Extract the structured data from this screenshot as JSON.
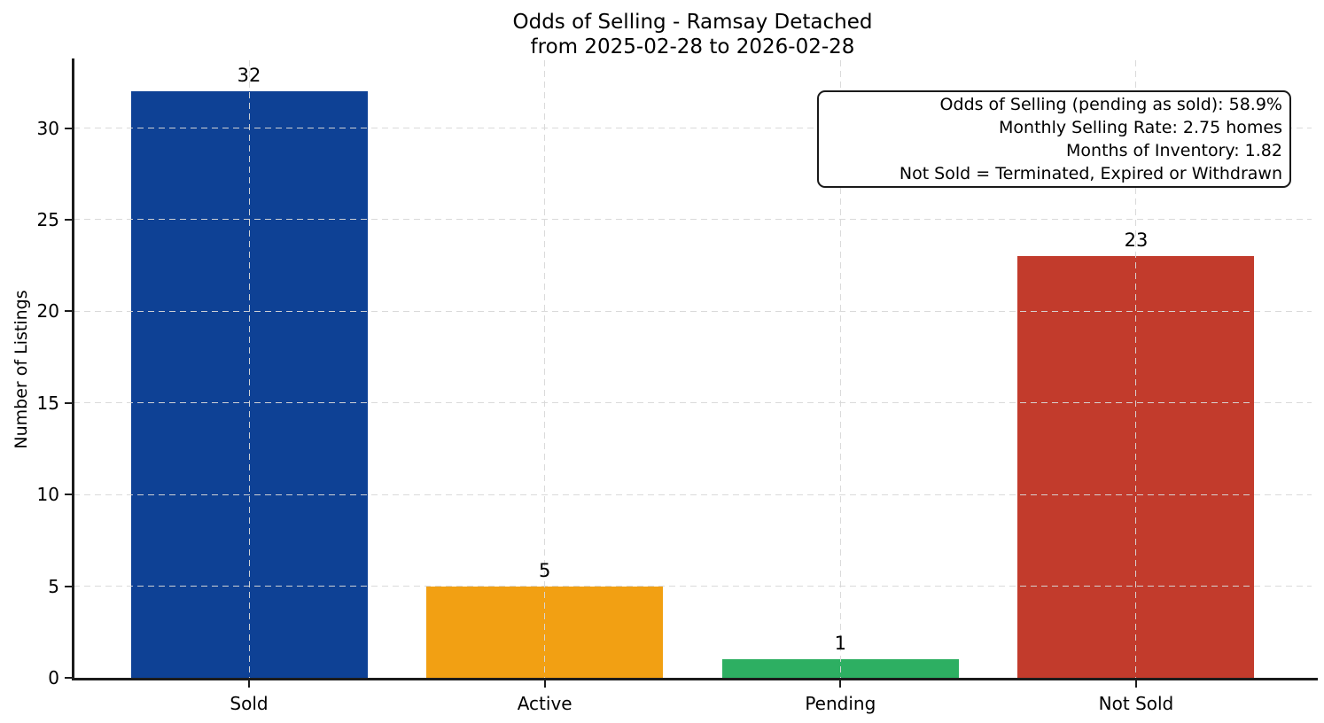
{
  "chart_data": {
    "type": "bar",
    "title": "Odds of Selling - Ramsay Detached",
    "subtitle": "from 2025-02-28 to 2026-02-28",
    "categories": [
      "Sold",
      "Active",
      "Pending",
      "Not Sold"
    ],
    "values": [
      32,
      5,
      1,
      23
    ],
    "bar_colors": [
      "#0e4195",
      "#f2a013",
      "#2daf62",
      "#c23b2c"
    ],
    "value_labels": [
      "32",
      "5",
      "1",
      "23"
    ],
    "xlabel": "",
    "ylabel": "Number of Listings",
    "ylim": [
      0,
      33.7
    ],
    "yticks": [
      0,
      5,
      10,
      15,
      20,
      25,
      30
    ],
    "grid": {
      "visible": true,
      "style": "dashed",
      "axes": "both",
      "color": "#d8d8d8"
    },
    "legend": "none",
    "annotation": {
      "position": "top-right",
      "lines": [
        "Odds of Selling (pending as sold): 58.9%",
        "Monthly Selling Rate: 2.75 homes",
        "Months of Inventory: 1.82",
        "Not Sold = Terminated, Expired or Withdrawn"
      ]
    }
  }
}
